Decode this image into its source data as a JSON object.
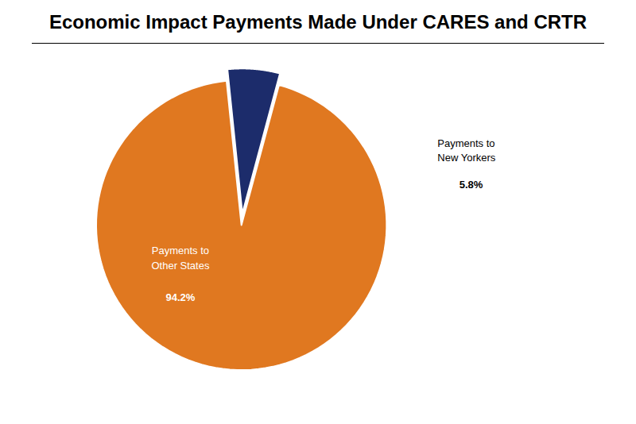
{
  "chart_data": {
    "type": "pie",
    "title": "Economic Impact Payments Made Under CARES and CRTR",
    "categories": [
      "Payments to\nOther States",
      "Payments to\nNew Yorkers"
    ],
    "values": [
      94.2,
      5.8
    ],
    "value_labels": [
      "94.2%",
      "5.8%"
    ],
    "colors": [
      "#E07820",
      "#1C2C6B"
    ],
    "data_labels": true
  }
}
